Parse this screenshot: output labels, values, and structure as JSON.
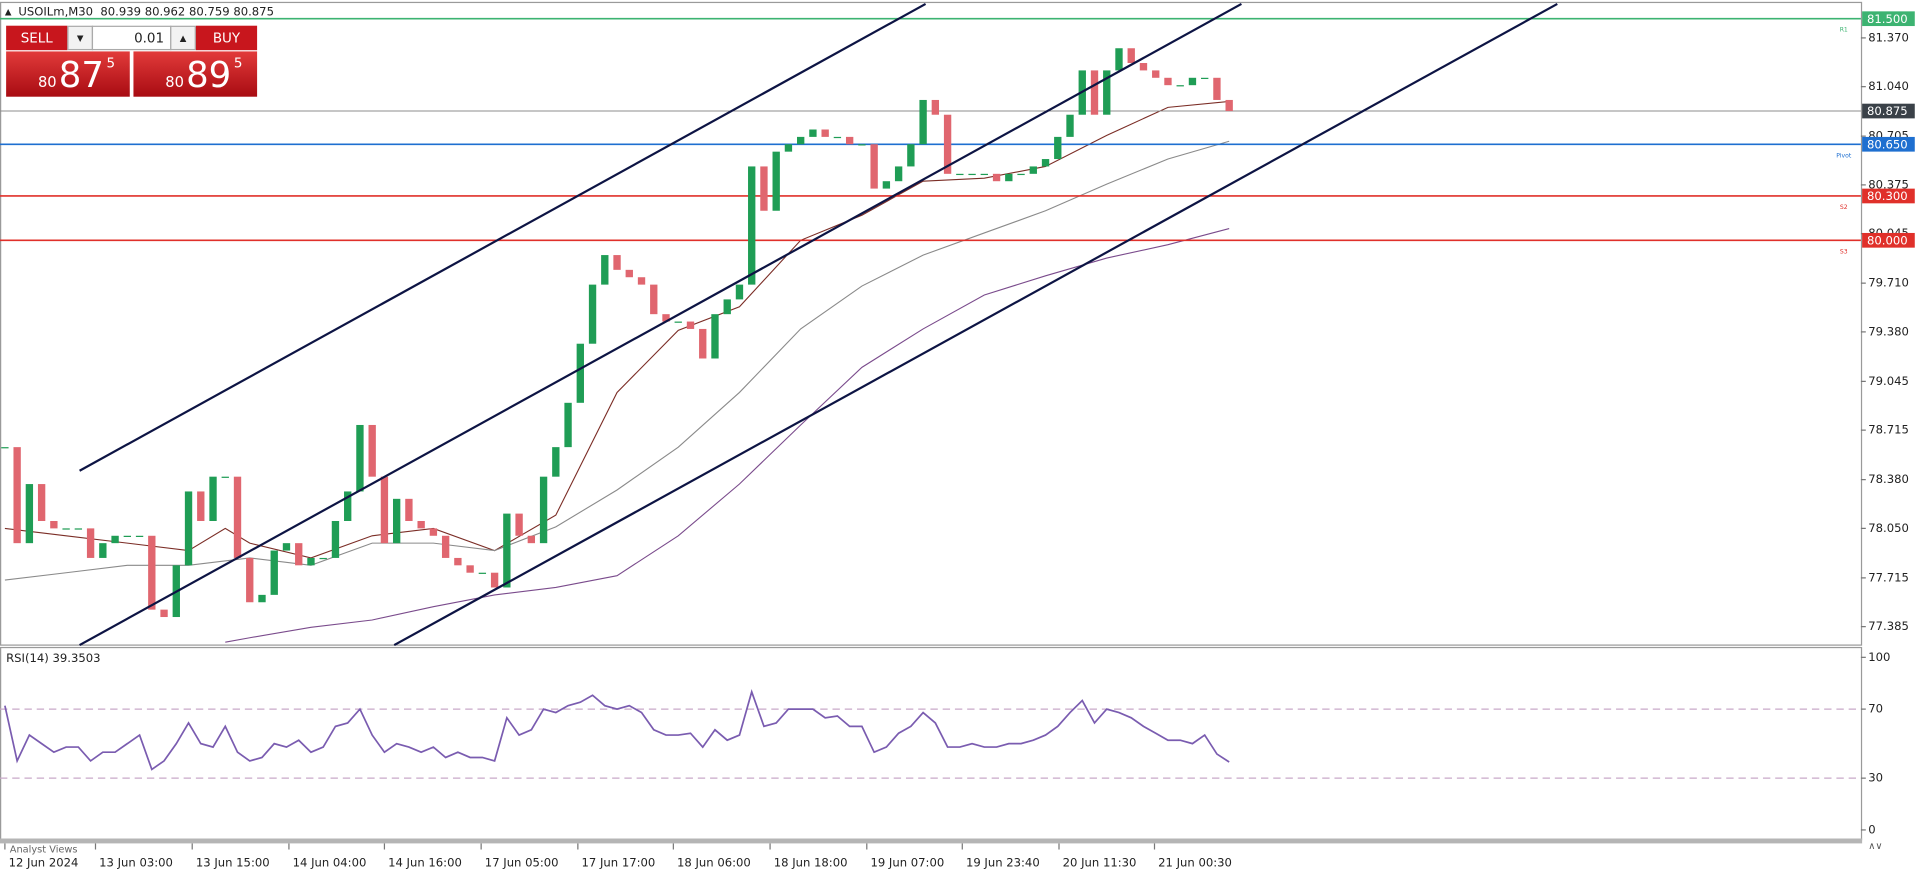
{
  "ui": {
    "symbol": "USOILm,M30",
    "ohlc": "80.939 80.962 80.759 80.875",
    "sell": "SELL",
    "buy": "BUY",
    "lot": "0.01",
    "sell_price": [
      "80",
      "87",
      "5"
    ],
    "buy_price": [
      "80",
      "89",
      "5"
    ],
    "tab": "Analyst Views"
  },
  "chart_data": {
    "type": "candlestick",
    "xlim": [
      -0.4,
      151.6
    ],
    "ylim": [
      77.26,
      81.61
    ],
    "yticks": [
      {
        "value": 81.37,
        "label": "81.370"
      },
      {
        "value": 81.04,
        "label": "81.040"
      },
      80.705,
      80.375,
      80.045,
      {
        "value": 79.71,
        "label": "79.710"
      },
      {
        "value": 79.38,
        "label": "79.380"
      },
      79.045,
      78.715,
      {
        "value": 78.38,
        "label": "78.380"
      },
      {
        "value": 78.05,
        "label": "78.050"
      },
      77.715,
      77.385
    ],
    "xticks": [
      {
        "value": 0,
        "label": "12 Jun 2024"
      },
      {
        "value": 7.4,
        "label": "13 Jun 03:00"
      },
      {
        "value": 15.3,
        "label": "13 Jun 15:00"
      },
      {
        "value": 23.2,
        "label": "14 Jun 04:00"
      },
      {
        "value": 31,
        "label": "14 Jun 16:00"
      },
      {
        "value": 38.9,
        "label": "17 Jun 05:00"
      },
      {
        "value": 46.8,
        "label": "17 Jun 17:00"
      },
      {
        "value": 54.6,
        "label": "18 Jun 06:00"
      },
      {
        "value": 62.5,
        "label": "18 Jun 18:00"
      },
      {
        "value": 70.4,
        "label": "19 Jun 07:00"
      },
      {
        "value": 78.2,
        "label": "19 Jun 23:40"
      },
      {
        "value": 86.1,
        "label": "20 Jun 11:30"
      },
      {
        "value": 93.9,
        "label": "21 Jun 00:30"
      }
    ],
    "close": [
      78.6,
      77.95,
      78.35,
      78.1,
      78.05,
      78.05,
      78.05,
      77.85,
      77.95,
      78.0,
      78.0,
      78.0,
      77.5,
      77.45,
      77.8,
      78.3,
      78.1,
      78.4,
      78.4,
      77.85,
      77.55,
      77.6,
      77.9,
      77.95,
      77.8,
      77.85,
      77.85,
      78.1,
      78.3,
      78.75,
      78.4,
      77.95,
      78.25,
      78.1,
      78.05,
      78.0,
      77.85,
      77.8,
      77.75,
      77.75,
      77.65,
      78.15,
      78.0,
      77.95,
      78.4,
      78.6,
      78.9,
      79.3,
      79.7,
      79.9,
      79.8,
      79.75,
      79.7,
      79.5,
      79.45,
      79.45,
      79.4,
      79.2,
      79.5,
      79.6,
      79.7,
      80.5,
      80.2,
      80.6,
      80.65,
      80.7,
      80.75,
      80.7,
      80.7,
      80.65,
      80.65,
      80.35,
      80.4,
      80.5,
      80.65,
      80.95,
      80.85,
      80.45,
      80.45,
      80.45,
      80.45,
      80.4,
      80.45,
      80.45,
      80.5,
      80.55,
      80.7,
      80.85,
      81.15,
      80.85,
      81.15,
      81.3,
      81.2,
      81.15,
      81.1,
      81.05,
      81.05,
      81.1,
      81.1,
      80.95,
      80.875
    ],
    "up_color": "#1f9d55",
    "down_color": "#e0666f",
    "series": [
      {
        "color": "#7b2d26",
        "x": [
          0,
          5,
          10,
          15,
          18,
          20,
          25,
          30,
          35,
          40,
          45,
          50,
          55,
          60,
          65,
          70,
          75,
          80,
          85,
          90,
          95,
          100
        ],
        "values": [
          78.05,
          78.0,
          77.95,
          77.9,
          78.05,
          77.95,
          77.85,
          78.0,
          78.05,
          77.9,
          78.14,
          78.97,
          79.39,
          79.55,
          80.0,
          80.17,
          80.4,
          80.42,
          80.5,
          80.71,
          80.9,
          80.94
        ]
      },
      {
        "color": "#8a8a8a",
        "x": [
          0,
          5,
          10,
          15,
          20,
          25,
          30,
          35,
          40,
          45,
          50,
          55,
          60,
          65,
          70,
          75,
          80,
          85,
          90,
          95,
          100
        ],
        "values": [
          77.7,
          77.75,
          77.8,
          77.8,
          77.85,
          77.8,
          77.95,
          77.95,
          77.9,
          78.06,
          78.31,
          78.6,
          78.97,
          79.4,
          79.69,
          79.9,
          80.05,
          80.2,
          80.38,
          80.55,
          80.67
        ]
      },
      {
        "color": "#7a4b8c",
        "x": [
          18,
          20,
          25,
          30,
          35,
          40,
          45,
          50,
          55,
          60,
          65,
          70,
          75,
          80,
          85,
          90,
          95,
          100
        ],
        "values": [
          77.28,
          77.31,
          77.38,
          77.43,
          77.52,
          77.6,
          77.65,
          77.73,
          78.0,
          78.35,
          78.75,
          79.14,
          79.4,
          79.63,
          79.76,
          79.88,
          79.97,
          80.08
        ]
      }
    ],
    "trendline_color": "#0d1444",
    "trendlines": [
      {
        "x": [
          6.1,
          75.2
        ],
        "values": [
          78.44,
          81.6
        ]
      },
      {
        "x": [
          6.1,
          101
        ],
        "values": [
          77.26,
          81.6
        ]
      },
      {
        "x": [
          31.8,
          126.8
        ],
        "values": [
          77.26,
          81.6
        ]
      }
    ],
    "levels": [
      {
        "name": "R1",
        "value": 81.5,
        "label": "81.500",
        "color": "#3cb371"
      },
      {
        "name": "Pivot",
        "value": 80.65,
        "label": "80.650",
        "color": "#1e6fd0"
      },
      {
        "name": "S2",
        "value": 80.3,
        "label": "80.300",
        "color": "#e0302a"
      },
      {
        "name": "S3",
        "value": 80.0,
        "label": "80.000",
        "color": "#e0302a"
      }
    ],
    "last_price": {
      "value": 80.875,
      "label": "80.875",
      "color": "#3a4148"
    },
    "rsi": {
      "title": "RSI(14) 39.3503",
      "color": "#7a5cb0",
      "ylim": [
        0,
        100
      ],
      "yticks": [
        100,
        70,
        30,
        0
      ],
      "levels": [
        70,
        30
      ],
      "values": [
        72,
        40,
        55,
        50,
        45,
        48,
        48,
        40,
        45,
        45,
        50,
        55,
        35,
        40,
        50,
        62,
        50,
        48,
        60,
        45,
        40,
        42,
        50,
        48,
        52,
        45,
        48,
        60,
        62,
        70,
        55,
        45,
        50,
        48,
        45,
        48,
        42,
        45,
        42,
        42,
        40,
        65,
        55,
        58,
        70,
        68,
        72,
        74,
        78,
        72,
        70,
        72,
        68,
        58,
        55,
        55,
        56,
        48,
        58,
        52,
        55,
        80,
        60,
        62,
        70,
        70,
        70,
        65,
        66,
        60,
        60,
        45,
        48,
        56,
        60,
        68,
        62,
        48,
        48,
        50,
        48,
        48,
        50,
        50,
        52,
        55,
        60,
        68,
        75,
        62,
        70,
        68,
        65,
        60,
        56,
        52,
        52,
        50,
        55,
        44,
        39.35
      ]
    }
  }
}
